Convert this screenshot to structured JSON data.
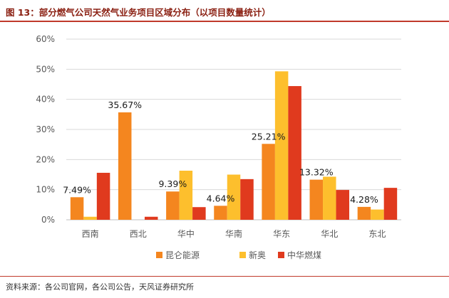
{
  "header": {
    "title": "图 13：部分燃气公司天然气业务项目区域分布（以项目数量统计）"
  },
  "footer": {
    "source": "资料来源：各公司官网，各公司公告，天风证券研究所"
  },
  "colors": {
    "accent": "#c0392b",
    "grid": "#d9d9d9"
  },
  "chart_data": {
    "type": "bar",
    "title": "",
    "xlabel": "",
    "ylabel": "",
    "categories": [
      "西南",
      "西北",
      "华中",
      "华南",
      "华东",
      "华北",
      "东北"
    ],
    "ylim": [
      0,
      60
    ],
    "yticks": [
      "0%",
      "10%",
      "20%",
      "30%",
      "40%",
      "50%",
      "60%"
    ],
    "grid": true,
    "legend_position": "bottom",
    "series": [
      {
        "name": "昆仑能源",
        "color": "#f4861f",
        "values": [
          7.49,
          35.67,
          9.39,
          4.64,
          25.21,
          13.32,
          4.28
        ]
      },
      {
        "name": "新奥",
        "color": "#fdbf2d",
        "values": [
          1.0,
          0,
          16.3,
          15.0,
          49.3,
          14.3,
          3.4
        ]
      },
      {
        "name": "中华燃煤",
        "color": "#e03a1e",
        "values": [
          15.6,
          1.0,
          4.2,
          13.5,
          44.4,
          9.9,
          10.6
        ]
      }
    ],
    "data_labels": [
      "7.49%",
      "35.67%",
      "9.39%",
      "4.64%",
      "25.21%",
      "13.32%",
      "4.28%"
    ]
  }
}
